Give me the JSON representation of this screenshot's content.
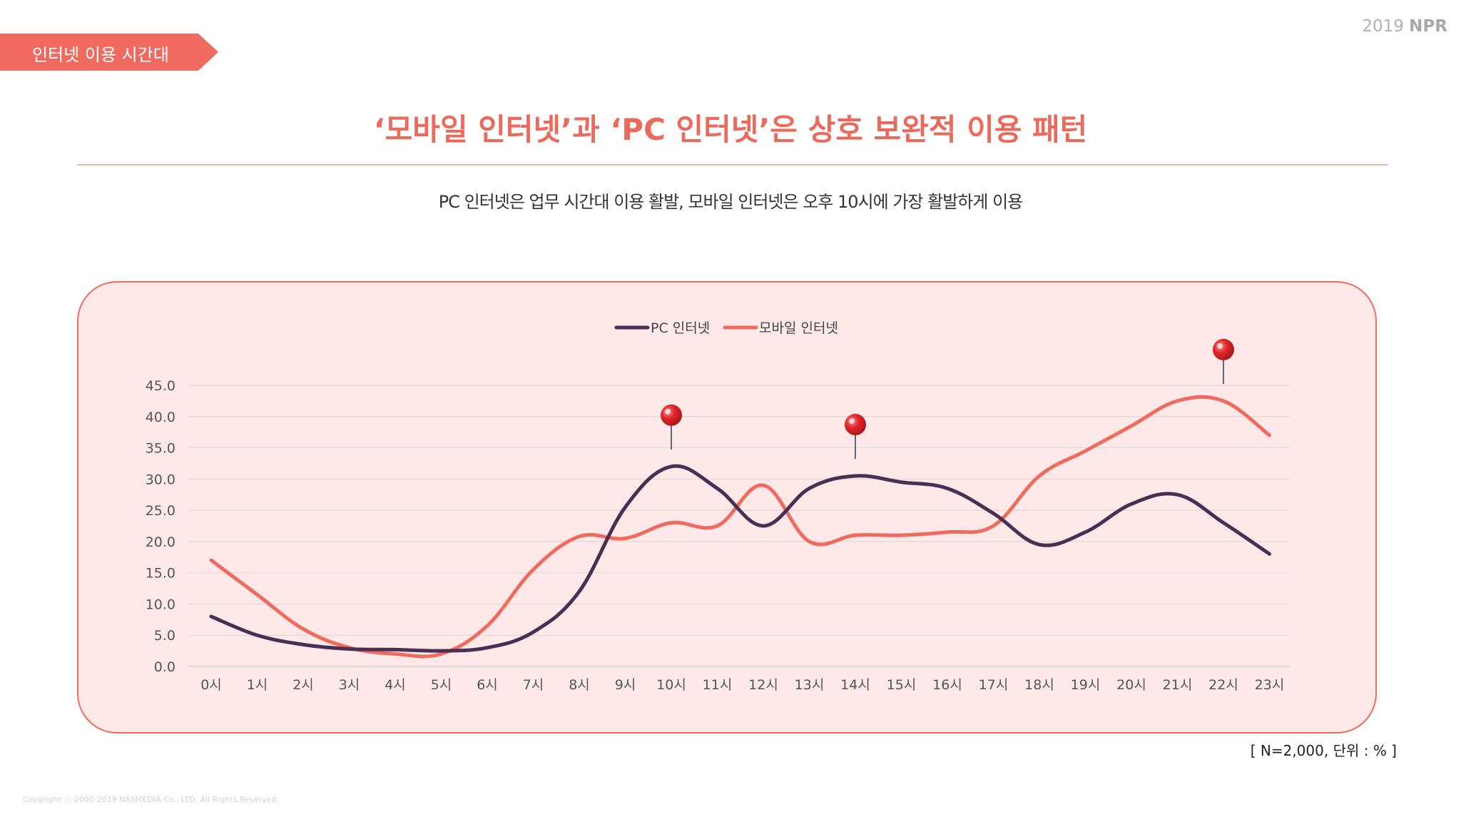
{
  "brand": {
    "year": "2019",
    "name": "NPR"
  },
  "section_tag": "인터넷 이용 시간대",
  "headline": "‘모바일 인터넷’과 ‘PC 인터넷’은 상호 보완적 이용 패턴",
  "subtitle": "PC 인터넷은 업무 시간대 이용 활발, 모바일 인터넷은 오후 10시에 가장 활발하게 이용",
  "note": "[ N=2,000, 단위 : % ]",
  "copyright": "Copyright ⓒ 2000-2019 NASMEDIA Co., LTD. All Rights Reserved.",
  "colors": {
    "accent": "#f06b5f",
    "pc": "#4a2f54",
    "mobile": "#f06b5f",
    "pin": "#e0262b",
    "panel_bg": "#ffe8e8"
  },
  "icons": {
    "pin": "map-pin-icon"
  },
  "chart_data": {
    "type": "line",
    "categories": [
      "0시",
      "1시",
      "2시",
      "3시",
      "4시",
      "5시",
      "6시",
      "7시",
      "8시",
      "9시",
      "10시",
      "11시",
      "12시",
      "13시",
      "14시",
      "15시",
      "16시",
      "17시",
      "18시",
      "19시",
      "20시",
      "21시",
      "22시",
      "23시"
    ],
    "series": [
      {
        "name": "PC 인터넷",
        "color": "#4a2f54",
        "values": [
          8.0,
          5.0,
          3.5,
          2.8,
          2.7,
          2.5,
          3.0,
          5.5,
          12.0,
          25.5,
          32.0,
          28.5,
          22.5,
          28.5,
          30.5,
          29.5,
          28.5,
          24.5,
          19.5,
          21.5,
          26.0,
          27.5,
          23.0,
          18.0
        ]
      },
      {
        "name": "모바일 인터넷",
        "color": "#f06b5f",
        "values": [
          17.0,
          11.5,
          6.0,
          3.0,
          2.0,
          2.0,
          6.5,
          15.5,
          20.8,
          20.5,
          23.0,
          22.5,
          29.0,
          20.0,
          21.0,
          21.0,
          21.5,
          22.5,
          30.5,
          34.5,
          38.5,
          42.5,
          42.5,
          37.0
        ]
      }
    ],
    "y_ticks": [
      "45.0",
      "40.0",
      "35.0",
      "30.0",
      "25.0",
      "20.0",
      "15.0",
      "10.0",
      "5.0",
      "0.0"
    ],
    "ylim": [
      0,
      45
    ],
    "grid": true,
    "legend_position": "top-center",
    "pins": [
      {
        "series": 0,
        "category": "10시"
      },
      {
        "series": 0,
        "category": "14시"
      },
      {
        "series": 1,
        "category": "22시"
      }
    ]
  }
}
